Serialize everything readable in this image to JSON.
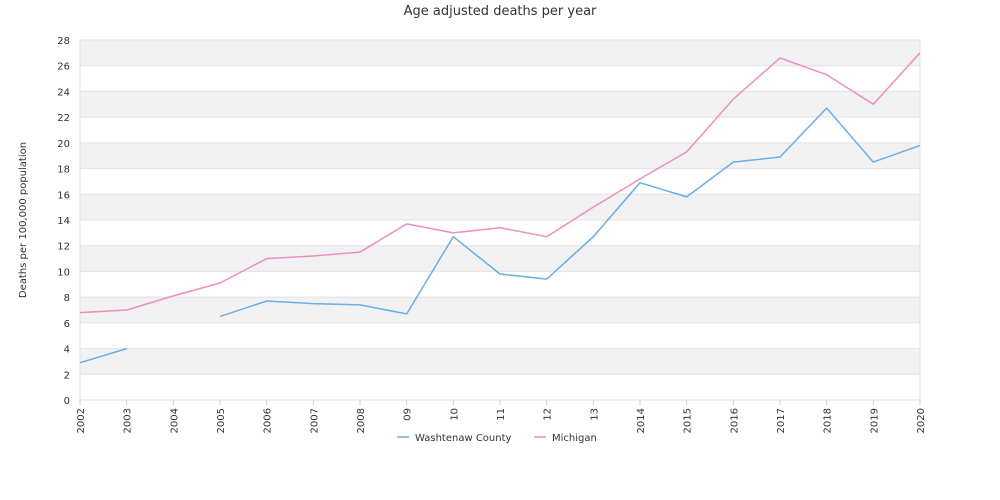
{
  "chart_data": {
    "type": "line",
    "title": "Age adjusted deaths per year",
    "xlabel": "",
    "ylabel": "Deaths per 100,000 population",
    "categories": [
      "2002",
      "2003",
      "2004",
      "2005",
      "2006",
      "2007",
      "2008",
      "09",
      "10",
      "11",
      "12",
      "13",
      "2014",
      "2015",
      "2016",
      "2017",
      "2018",
      "2019",
      "2020"
    ],
    "ylim": [
      0,
      28
    ],
    "yticks": [
      0,
      2,
      4,
      6,
      8,
      10,
      12,
      14,
      16,
      18,
      20,
      22,
      24,
      26,
      28
    ],
    "grid": "horizontal alternating bands",
    "legend": "bottom-center",
    "series": [
      {
        "name": "Washtenaw County",
        "color": "#6aaee8",
        "values": [
          2.9,
          4.0,
          null,
          6.5,
          7.7,
          7.5,
          7.4,
          6.7,
          12.7,
          9.8,
          9.4,
          12.7,
          16.9,
          15.8,
          18.5,
          18.9,
          22.7,
          18.5,
          19.8
        ]
      },
      {
        "name": "Michigan",
        "color": "#ee8fbd",
        "values": [
          6.8,
          7.0,
          8.1,
          9.1,
          11.0,
          11.2,
          11.5,
          13.7,
          13.0,
          13.4,
          12.7,
          15.0,
          17.2,
          19.3,
          23.4,
          26.6,
          25.3,
          23.0,
          27.0
        ]
      }
    ]
  }
}
